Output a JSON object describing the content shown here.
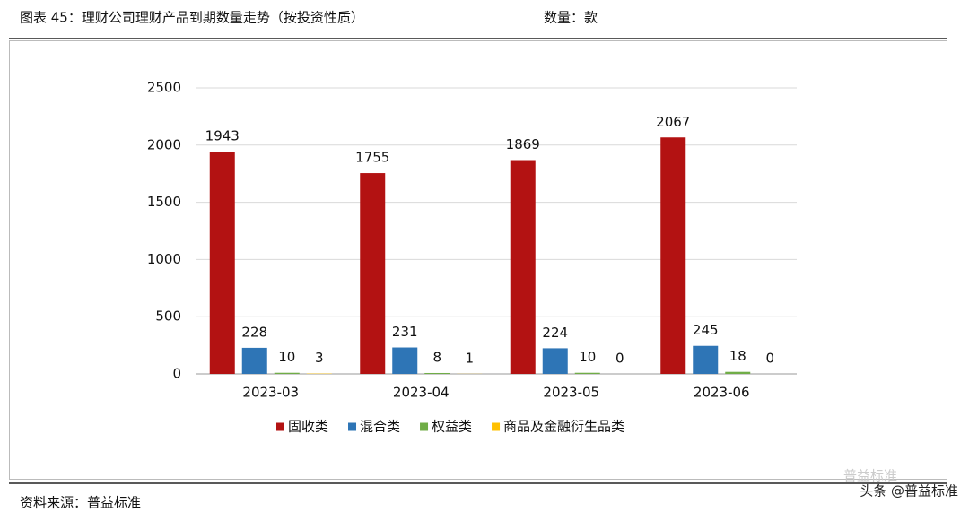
{
  "header": {
    "title": "图表 45：理财公司理财产品到期数量走势（按投资性质）",
    "unit": "数量：款"
  },
  "chart_data": {
    "type": "bar",
    "categories": [
      "2023-03",
      "2023-04",
      "2023-05",
      "2023-06"
    ],
    "series": [
      {
        "name": "固收类",
        "color": "#b31212",
        "values": [
          1943,
          1755,
          1869,
          2067
        ]
      },
      {
        "name": "混合类",
        "color": "#2e75b6",
        "values": [
          228,
          231,
          224,
          245
        ]
      },
      {
        "name": "权益类",
        "color": "#70ad47",
        "values": [
          10,
          8,
          10,
          18
        ]
      },
      {
        "name": "商品及金融衍生品类",
        "color": "#ffc000",
        "values": [
          3,
          1,
          0,
          0
        ]
      }
    ],
    "ylim": [
      0,
      2500
    ],
    "yticks": [
      0,
      500,
      1000,
      1500,
      2000,
      2500
    ],
    "grid": true,
    "legend": "bottom"
  },
  "footer": {
    "source": "资料来源：普益标准"
  },
  "watermark": {
    "logo": "普益标准",
    "credit": "头条 @普益标准"
  }
}
